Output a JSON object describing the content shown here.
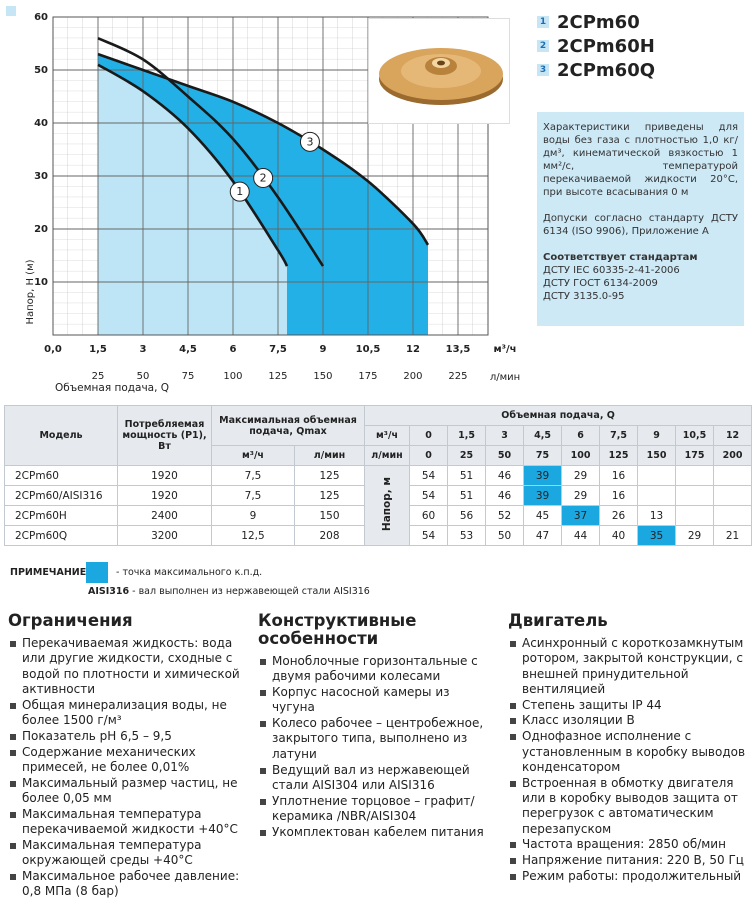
{
  "chart_data": {
    "type": "line",
    "x_label": "Объемная подача, Q",
    "x_unit": "м³/ч",
    "x2_unit": "л/мин",
    "y_label": "Напор, H (м)",
    "xlim": [
      0,
      14.5
    ],
    "x2lim": [
      0,
      241.7
    ],
    "ylim": [
      0,
      60
    ],
    "xticks": [
      {
        "value": 0,
        "label": "0,0"
      },
      {
        "value": 1.5,
        "label": "1,5"
      },
      3,
      {
        "value": 4.5,
        "label": "4,5"
      },
      6,
      {
        "value": 7.5,
        "label": "7,5"
      },
      9,
      {
        "value": 10.5,
        "label": "10,5"
      },
      12,
      {
        "value": 13.5,
        "label": "13,5"
      }
    ],
    "x2ticks": [
      25,
      50,
      75,
      100,
      125,
      150,
      175,
      200,
      225
    ],
    "yticks": [
      10,
      20,
      30,
      40,
      50,
      60
    ],
    "grid": true,
    "series": [
      {
        "name": "2CPm60",
        "label": "1",
        "color": "#1a1a1a",
        "fill": "#bde5f6",
        "x": [
          1.5,
          3,
          4.5,
          6,
          7.5,
          7.8
        ],
        "values": [
          51,
          46,
          39,
          29,
          16,
          13
        ]
      },
      {
        "name": "2CPm60H",
        "label": "2",
        "color": "#1a1a1a",
        "x": [
          1.5,
          3,
          4.5,
          6,
          7.5,
          9
        ],
        "values": [
          56,
          52,
          45,
          37,
          26,
          13
        ]
      },
      {
        "name": "2CPm60Q",
        "label": "3",
        "color": "#1a1a1a",
        "fill": "#22b0e6",
        "x": [
          1.5,
          3,
          4.5,
          6,
          7.5,
          9,
          10.5,
          12,
          12.5
        ],
        "values": [
          53,
          50,
          47,
          44,
          40,
          35,
          29,
          21,
          17
        ]
      }
    ]
  },
  "description": {
    "p1": "Характеристики приведены для воды без газа с плотностью 1,0 кг/дм³, кинематической вязкостью 1 мм²/с, температурой перекачиваемой жидкости 20°С, при высоте всасывания 0 м",
    "p2": "Допуски согласно стандарту ДСТУ 6134 (ISO 9906), Приложение А",
    "standards_title": "Соответствует стандартам",
    "standards": [
      "ДСТУ IEC 60335-2-41-2006",
      "ДСТУ ГОСТ 6134-2009",
      "ДСТУ 3135.0-95"
    ]
  },
  "table": {
    "header": {
      "model": "Модель",
      "power": "Потребляемая мощность (P1), Вт",
      "qmax": "Максимальная объемная подача, Qmax",
      "qmax_units": [
        "м³/ч",
        "л/мин"
      ],
      "flow": "Объемная подача, Q",
      "flow_units": [
        "м³/ч",
        "л/мин"
      ],
      "flow_m3h": [
        "0",
        "1,5",
        "3",
        "4,5",
        "6",
        "7,5",
        "9",
        "10,5",
        "12"
      ],
      "flow_lmin": [
        "0",
        "25",
        "50",
        "75",
        "100",
        "125",
        "150",
        "175",
        "200"
      ],
      "head": "Напор, м"
    },
    "highlight_color": "#1ba8e0",
    "rows": [
      {
        "model": "2CPm60",
        "power": "1920",
        "qmax_m3h": "7,5",
        "qmax_lmin": "125",
        "head": [
          "54",
          "51",
          "46",
          "39",
          "29",
          "16"
        ],
        "best": 3
      },
      {
        "model": "2CPm60/AISI316",
        "power": "1920",
        "qmax_m3h": "7,5",
        "qmax_lmin": "125",
        "head": [
          "54",
          "51",
          "46",
          "39",
          "29",
          "16"
        ],
        "best": 3
      },
      {
        "model": "2CPm60H",
        "power": "2400",
        "qmax_m3h": "9",
        "qmax_lmin": "150",
        "head": [
          "60",
          "56",
          "52",
          "45",
          "37",
          "26",
          "13"
        ],
        "best": 4
      },
      {
        "model": "2CPm60Q",
        "power": "3200",
        "qmax_m3h": "12,5",
        "qmax_lmin": "208",
        "head": [
          "54",
          "53",
          "50",
          "47",
          "44",
          "40",
          "35",
          "29",
          "21"
        ],
        "best": 6
      }
    ]
  },
  "note": {
    "label": "ПРИМЕЧАНИЕ:",
    "text": "- точка максимального к.п.д.",
    "term": "AISI316",
    "term_text": "- вал выполнен из нержавеющей стали AISI316"
  },
  "sections": [
    {
      "title": "Ограничения",
      "items": [
        "Перекачиваемая жидкость: вода или другие жидкости, сходные с водой по плотности и химической активности",
        "Общая минерализация воды, не более 1500 г/м³",
        "Показатель pH 6,5 – 9,5",
        "Содержание механических примесей, не более 0,01%",
        "Максимальный размер частиц, не более 0,05 мм",
        "Максимальная температура перекачиваемой жидкости +40°С",
        "Максимальная температура окружающей среды +40°С",
        "Максимальное рабочее давление: 0,8 МПа (8 бар)"
      ]
    },
    {
      "title": "Конструктивные особенности",
      "items": [
        "Моноблочные горизонтальные с двумя рабочими колесами",
        "Корпус насосной камеры из чугуна",
        "Колесо рабочее – центробежное, закрытого типа, выполнено из латуни",
        "Ведущий вал из нержавеющей стали AISI304 или AISI316",
        "Уплотнение торцовое – графит/керамика /NBR/AISI304",
        "Укомплектован кабелем питания"
      ]
    },
    {
      "title": "Двигатель",
      "items": [
        "Асинхронный с короткозамкнутым ротором, закрытой конструкции, с внешней принудительной вентиляцией",
        "Степень защиты IP 44",
        "Класс изоляции B",
        "Однофазное исполнение с установленным в коробку выводов конденсатором",
        "Встроенная в обмотку двигателя или в коробку выводов защита от перегрузок с автоматическим перезапуском",
        "Частота вращения: 2850 об/мин",
        "Напряжение питания: 220 В, 50 Гц",
        "Режим работы: продолжительный"
      ]
    }
  ]
}
